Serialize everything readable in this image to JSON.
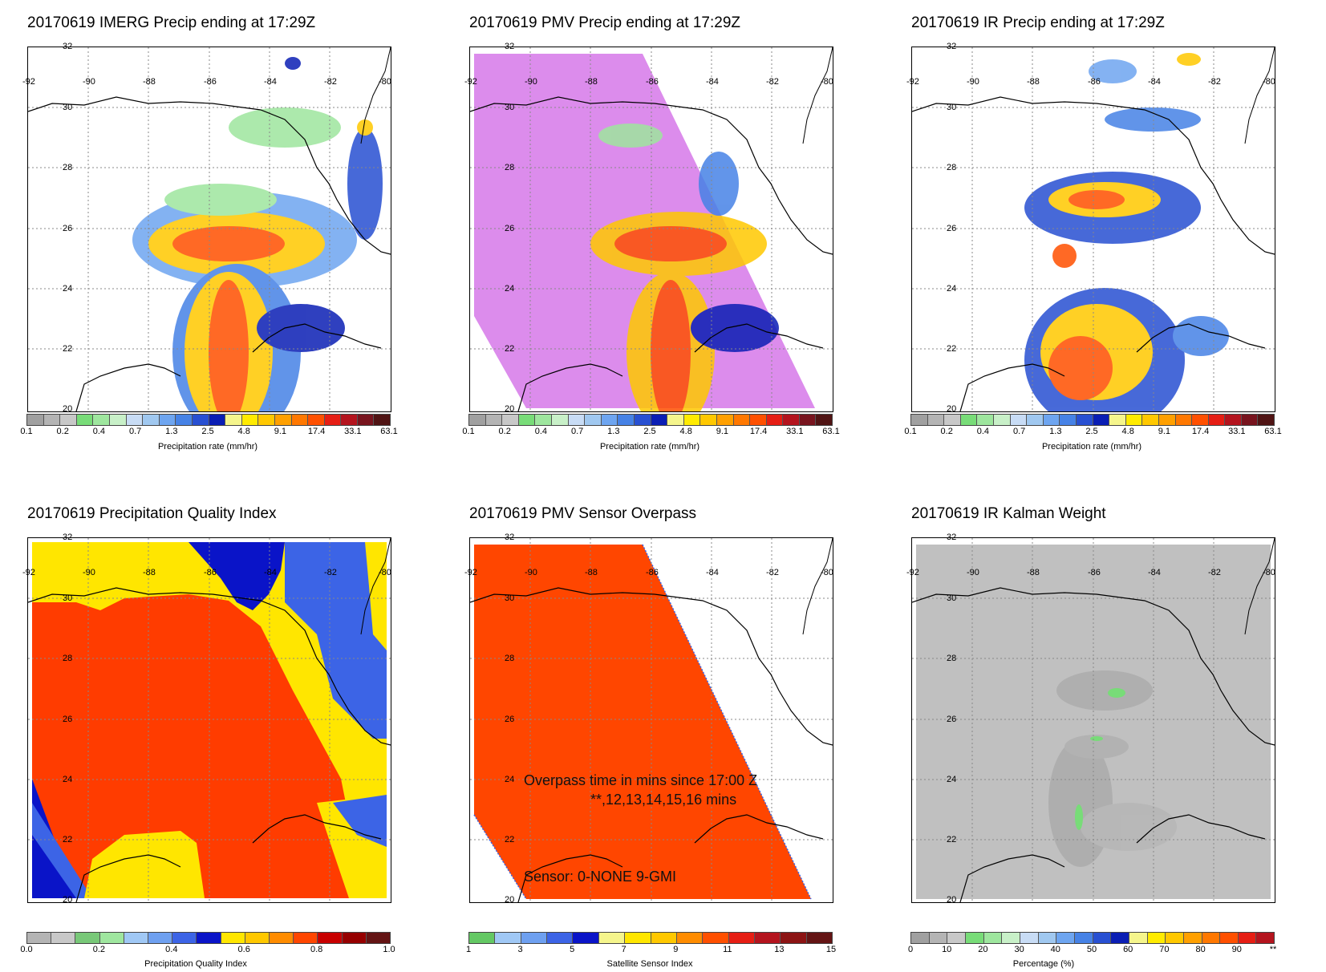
{
  "panels": [
    {
      "title": "20170619 IMERG Precip ending at 17:29Z",
      "cbar_title": "Precipitation rate (mm/hr)",
      "scale": "precip"
    },
    {
      "title": "20170619 PMV Precip ending at 17:29Z",
      "cbar_title": "Precipitation rate (mm/hr)",
      "scale": "precip"
    },
    {
      "title": "20170619 IR Precip ending at 17:29Z",
      "cbar_title": "Precipitation rate (mm/hr)",
      "scale": "precip"
    },
    {
      "title": "20170619 Precipitation Quality Index",
      "cbar_title": "Precipitation Quality Index",
      "scale": "pqi"
    },
    {
      "title": "20170619 PMV Sensor Overpass",
      "cbar_title": "Satellite Sensor Index",
      "scale": "sensor"
    },
    {
      "title": "20170619 IR Kalman Weight",
      "cbar_title": "Percentage (%)",
      "scale": "pct"
    }
  ],
  "map": {
    "lon_labels": [
      "-92",
      "-90",
      "-88",
      "-86",
      "-84",
      "-82",
      "-80"
    ],
    "lat_labels": [
      "32",
      "30",
      "28",
      "26",
      "24",
      "22",
      "20"
    ]
  },
  "scales": {
    "precip": {
      "colors": [
        "#a0a0a0",
        "#b4b4b4",
        "#c8c8c8",
        "#78dc78",
        "#9ee69e",
        "#c8f0c8",
        "#c8dcf5",
        "#a0c8f0",
        "#6ea5f0",
        "#4682e6",
        "#2850d2",
        "#0a1eb4",
        "#f5f58c",
        "#ffeb00",
        "#ffc800",
        "#ffa000",
        "#ff7800",
        "#ff5000",
        "#e61e14",
        "#b4141e",
        "#78141e",
        "#501414"
      ],
      "ticks": [
        "0.1",
        "0.2",
        "0.4",
        "0.7",
        "1.3",
        "2.5",
        "4.8",
        "9.1",
        "17.4",
        "33.1",
        "63.1"
      ]
    },
    "pqi": {
      "colors": [
        "#b4b4b4",
        "#c8c8c8",
        "#78c878",
        "#9fe69f",
        "#a0c8f5",
        "#6ea0f0",
        "#3c64e6",
        "#0a14c8",
        "#ffe600",
        "#ffc800",
        "#ff8c00",
        "#ff4600",
        "#c80000",
        "#960000",
        "#641414"
      ],
      "ticks": [
        "0.0",
        "0.2",
        "0.4",
        "0.6",
        "0.8",
        "1.0"
      ]
    },
    "sensor": {
      "colors": [
        "#64c864",
        "#a0c8f5",
        "#6ea0f0",
        "#3c64e6",
        "#0a14c8",
        "#f5f58c",
        "#ffe600",
        "#ffc800",
        "#ff8c00",
        "#ff5000",
        "#e61e14",
        "#b4141e",
        "#8c1414",
        "#641414"
      ],
      "ticks": [
        "1",
        "3",
        "5",
        "7",
        "9",
        "11",
        "13",
        "15"
      ]
    },
    "pct": {
      "colors": [
        "#a0a0a0",
        "#b4b4b4",
        "#c8c8c8",
        "#78dc78",
        "#9ee69e",
        "#c8f0c8",
        "#c8dcf5",
        "#a0c8f0",
        "#6ea5f0",
        "#4682e6",
        "#2850d2",
        "#0a1eb4",
        "#f5f58c",
        "#ffeb00",
        "#ffc800",
        "#ffa000",
        "#ff7800",
        "#ff5000",
        "#e61e14",
        "#b4141e"
      ],
      "ticks": [
        "0",
        "10",
        "20",
        "30",
        "40",
        "50",
        "60",
        "70",
        "80",
        "90",
        "**"
      ]
    }
  },
  "annotations": {
    "overpass_line1": "Overpass time in mins since 17:00 Z",
    "overpass_line2": "**,12,13,14,15,16 mins",
    "sensor_line": "Sensor:   0-NONE  9-GMI"
  },
  "colors": {
    "pmv_missing": "#dc8cec",
    "overpass": "#ff4600",
    "pqi_red": "#ff3c00",
    "pqi_yellow": "#ffe600",
    "pqi_blue": "#3c64e6",
    "pqi_darkblue": "#0a14c8",
    "kalman_gray": "#c0c0c0"
  }
}
